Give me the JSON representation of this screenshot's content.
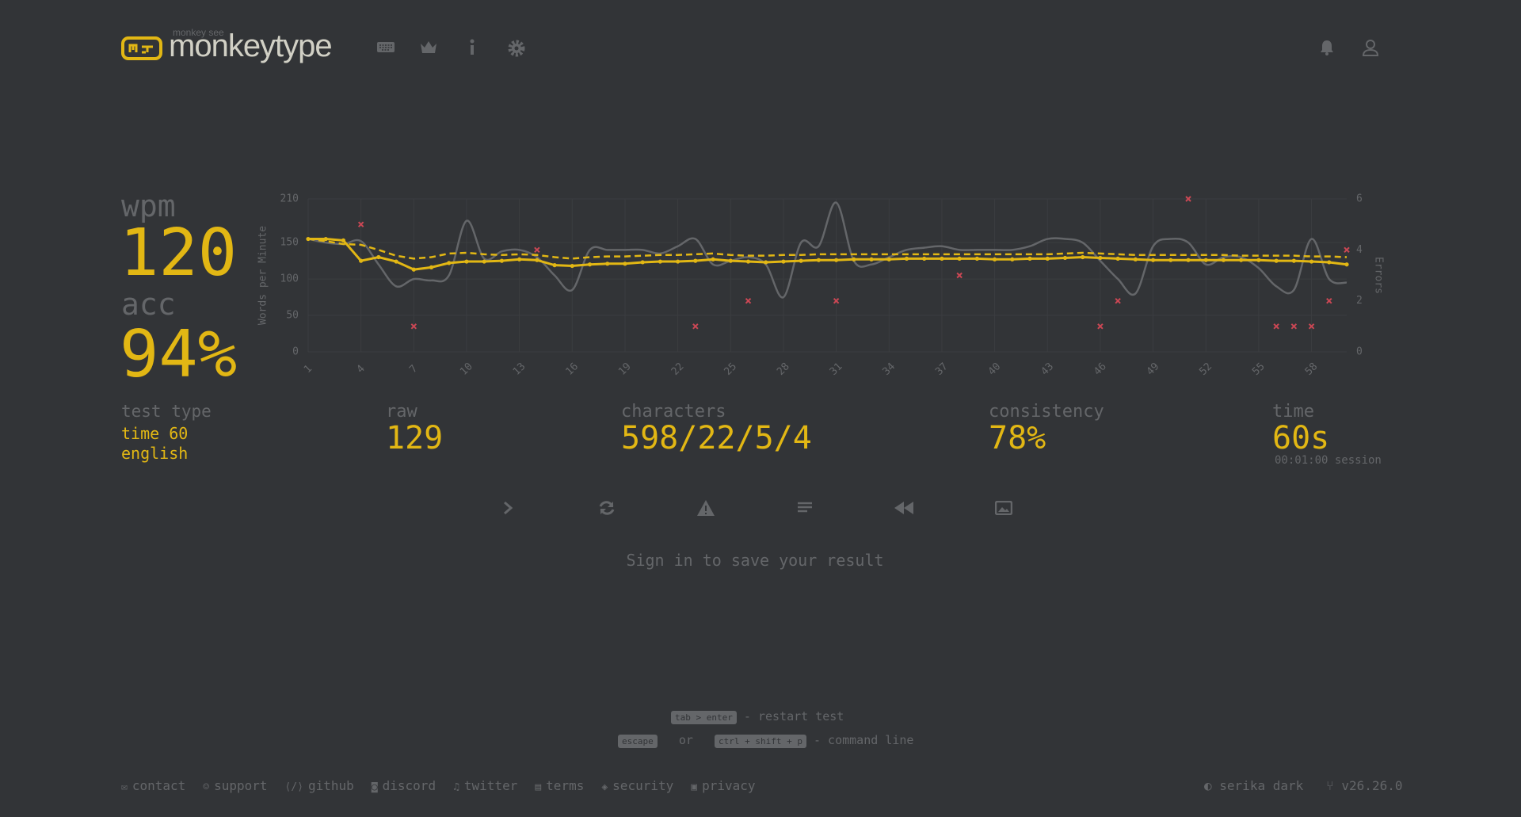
{
  "header": {
    "logo_small": "monkey see",
    "logo": "monkeytype"
  },
  "results": {
    "wpm_label": "wpm",
    "wpm": "120",
    "acc_label": "acc",
    "acc": "94%",
    "test_type_label": "test type",
    "test_type": [
      "time 60",
      "english"
    ],
    "stats": [
      {
        "label": "raw",
        "value": "129"
      },
      {
        "label": "characters",
        "value": "598/22/5/4"
      },
      {
        "label": "consistency",
        "value": "78%"
      },
      {
        "label": "time",
        "value": "60s"
      }
    ],
    "time_session": "00:01:00 session"
  },
  "chart_data": {
    "type": "line",
    "y_label": "Words per Minute",
    "y2_label": "Errors",
    "x": [
      1,
      2,
      3,
      4,
      5,
      6,
      7,
      8,
      9,
      10,
      11,
      12,
      13,
      14,
      15,
      16,
      17,
      18,
      19,
      20,
      21,
      22,
      23,
      24,
      25,
      26,
      27,
      28,
      29,
      30,
      31,
      32,
      33,
      34,
      35,
      36,
      37,
      38,
      39,
      40,
      41,
      42,
      43,
      44,
      45,
      46,
      47,
      48,
      49,
      50,
      51,
      52,
      53,
      54,
      55,
      56,
      57,
      58,
      59,
      60
    ],
    "xlim": [
      1,
      60
    ],
    "xticks": [
      1,
      4,
      7,
      10,
      13,
      16,
      19,
      22,
      25,
      28,
      31,
      34,
      37,
      40,
      43,
      46,
      49,
      52,
      55,
      58
    ],
    "ylim": [
      0,
      210
    ],
    "yticks": [
      0,
      50,
      100,
      150,
      210
    ],
    "y2lim": [
      0,
      6
    ],
    "y2ticks": [
      0,
      2,
      4,
      6
    ],
    "grid": true,
    "series": [
      {
        "color": "#646669",
        "style": "smooth",
        "values": [
          155,
          150,
          148,
          152,
          120,
          90,
          100,
          98,
          105,
          180,
          128,
          138,
          140,
          130,
          105,
          85,
          140,
          140,
          140,
          140,
          135,
          145,
          155,
          120,
          125,
          130,
          120,
          75,
          150,
          145,
          205,
          125,
          120,
          130,
          140,
          143,
          145,
          140,
          140,
          140,
          140,
          145,
          155,
          155,
          150,
          125,
          100,
          80,
          145,
          155,
          150,
          120,
          130,
          130,
          115,
          90,
          85,
          155,
          100,
          95
        ]
      },
      {
        "color": "#e2b714",
        "style": "dashed",
        "values": [
          155,
          152,
          148,
          147,
          140,
          132,
          128,
          130,
          135,
          136,
          134,
          133,
          134,
          133,
          130,
          128,
          130,
          131,
          131,
          132,
          133,
          133,
          134,
          135,
          133,
          132,
          132,
          133,
          133,
          134,
          134,
          134,
          134,
          134,
          134,
          134,
          134,
          134,
          134,
          134,
          134,
          134,
          134,
          135,
          136,
          135,
          134,
          133,
          133,
          133,
          133,
          133,
          133,
          132,
          132,
          132,
          132,
          131,
          131,
          130
        ]
      },
      {
        "color": "#e2b714",
        "style": "dots",
        "values": [
          155,
          155,
          153,
          125,
          130,
          124,
          113,
          116,
          122,
          124,
          124,
          125,
          127,
          126,
          119,
          118,
          120,
          121,
          121,
          123,
          124,
          124,
          125,
          127,
          125,
          124,
          123,
          124,
          125,
          126,
          126,
          127,
          127,
          127,
          128,
          128,
          128,
          128,
          128,
          127,
          127,
          128,
          128,
          129,
          130,
          129,
          128,
          127,
          126,
          126,
          126,
          126,
          126,
          126,
          126,
          125,
          125,
          124,
          123,
          120
        ]
      },
      {
        "color": "#ca4754",
        "style": "cross",
        "axis": "y2",
        "values": [
          null,
          null,
          null,
          5,
          null,
          null,
          1,
          null,
          null,
          null,
          null,
          null,
          null,
          4,
          null,
          null,
          null,
          null,
          null,
          null,
          null,
          null,
          1,
          null,
          null,
          2,
          null,
          null,
          null,
          null,
          2,
          null,
          null,
          null,
          null,
          null,
          null,
          3,
          null,
          null,
          null,
          null,
          null,
          null,
          null,
          1,
          2,
          null,
          null,
          null,
          6,
          null,
          null,
          null,
          null,
          1,
          1,
          1,
          2,
          4
        ]
      }
    ]
  },
  "sign_in": "Sign in to save your result",
  "hints": {
    "restart_key": "tab > enter",
    "restart": "- restart test",
    "escape_key": "escape",
    "or": "or",
    "command_key": "ctrl + shift + p",
    "command": "- command line"
  },
  "footer": {
    "links": [
      "contact",
      "support",
      "github",
      "discord",
      "twitter",
      "terms",
      "security",
      "privacy"
    ],
    "theme": "serika dark",
    "version": "v26.26.0"
  }
}
